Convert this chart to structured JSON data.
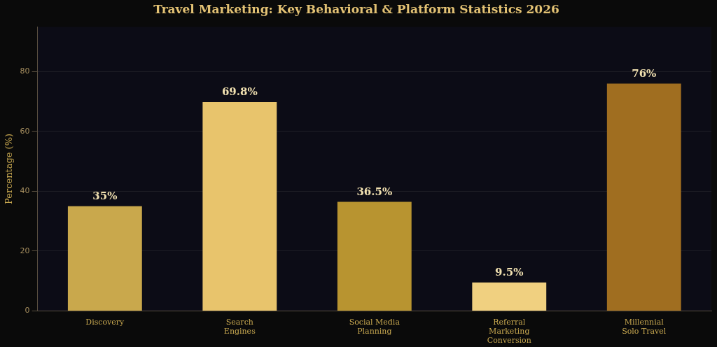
{
  "chart_data": {
    "type": "bar",
    "title": "Travel Marketing: Key Behavioral & Platform Statistics 2026",
    "ylabel": "Percentage (%)",
    "categories": [
      "Discovery",
      "Search Engines",
      "Social Media Planning",
      "Referral Marketing Conversion",
      "Millennial Solo Travel"
    ],
    "values": [
      35,
      69.8,
      36.5,
      9.5,
      76
    ],
    "colors": [
      "#c9a84c",
      "#e8c46c",
      "#b89430",
      "#f0d080",
      "#a06e20"
    ],
    "value_labels": [
      "35%",
      "69.8%",
      "36.5%",
      "9.5%",
      "76%"
    ],
    "ylim": [
      0,
      95
    ],
    "yticks": [
      0,
      20,
      40,
      60,
      80
    ],
    "grid": "y",
    "legend": false
  }
}
